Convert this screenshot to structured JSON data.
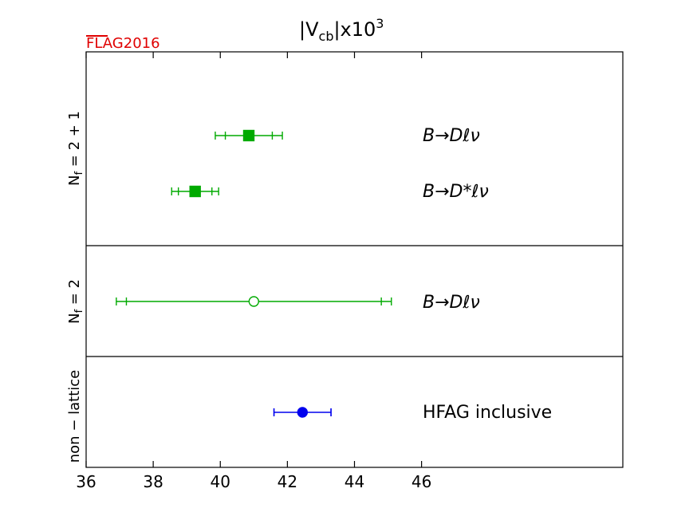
{
  "brand": {
    "text": "FLAG2016",
    "color": "#e00000"
  },
  "chart_data": {
    "type": "scatter",
    "title": {
      "main": "|V",
      "sub": "cb",
      "mid": "|x10",
      "sup": "3"
    },
    "xlim": [
      36,
      52
    ],
    "xticks": [
      36,
      38,
      40,
      42,
      44,
      46
    ],
    "xtick_labels": [
      "36",
      "38",
      "40",
      "42",
      "44",
      "46"
    ],
    "grid": false,
    "panels": [
      {
        "label": "N_f = 2 + 1",
        "label_main": "N",
        "label_sub": "f",
        "label_rest": " = 2 + 1",
        "points": [
          {
            "label": "B→Dℓν",
            "value": 40.85,
            "stat_err": [
              40.15,
              41.55
            ],
            "tot_err": [
              39.85,
              41.85
            ],
            "marker": "square",
            "filled": true,
            "color": "#00aa00"
          },
          {
            "label": "B→D*ℓν",
            "value": 39.25,
            "stat_err": [
              38.75,
              39.75
            ],
            "tot_err": [
              38.55,
              39.95
            ],
            "marker": "square",
            "filled": true,
            "color": "#00aa00"
          }
        ]
      },
      {
        "label": "N_f = 2",
        "label_main": "N",
        "label_sub": "f",
        "label_rest": " = 2",
        "points": [
          {
            "label": "B→Dℓν",
            "value": 41.0,
            "stat_err": [
              37.2,
              44.8
            ],
            "tot_err": [
              36.9,
              45.1
            ],
            "marker": "circle",
            "filled": false,
            "color": "#00aa00"
          }
        ]
      },
      {
        "label": "non − lattice",
        "label_main": "non − lattice",
        "label_sub": "",
        "label_rest": "",
        "points": [
          {
            "label": "HFAG inclusive",
            "value": 42.45,
            "stat_err": [
              41.6,
              43.3
            ],
            "tot_err": [
              41.6,
              43.3
            ],
            "marker": "circle",
            "filled": true,
            "color": "#0000ee"
          }
        ]
      }
    ]
  }
}
